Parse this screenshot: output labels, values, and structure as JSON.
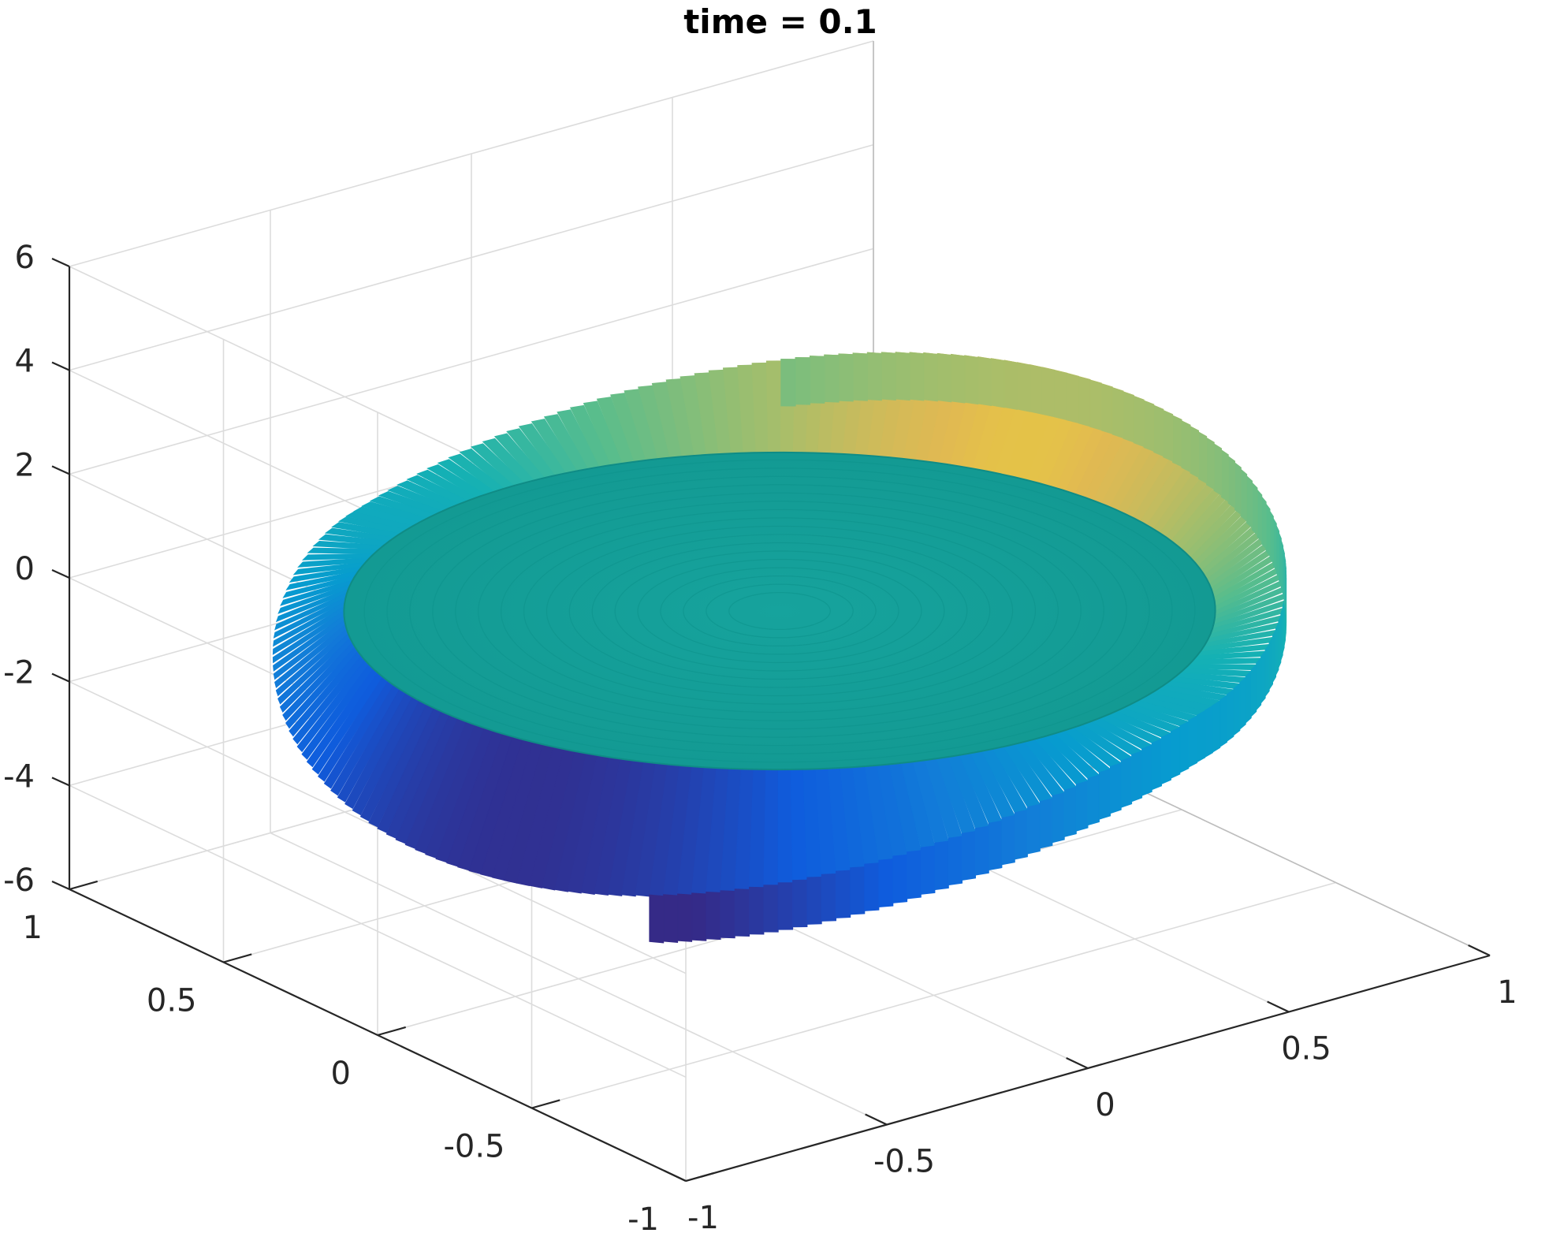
{
  "chart_data": {
    "type": "surface3d",
    "title": "time = 0.1",
    "xlabel": "",
    "ylabel": "",
    "zlabel": "",
    "xlim": [
      -1,
      1
    ],
    "ylim": [
      -1,
      1
    ],
    "zlim": [
      -6,
      6
    ],
    "x_ticks": [
      -1,
      -0.5,
      0,
      0.5,
      1
    ],
    "x_tick_labels": [
      "-1",
      "-0.5",
      "0",
      "0.5",
      "1"
    ],
    "y_ticks": [
      -1,
      -0.5,
      0,
      0.5,
      1
    ],
    "y_tick_labels": [
      "-1",
      "-0.5",
      "0",
      "0.5",
      "1"
    ],
    "z_ticks": [
      -6,
      -4,
      -2,
      0,
      2,
      4,
      6
    ],
    "z_tick_labels": [
      "-6",
      "-4",
      "-2",
      "0",
      "2",
      "4",
      "6"
    ],
    "grid": true,
    "colormap": "parula",
    "surface": {
      "domain": "unit disk",
      "interior_value": 0,
      "rim_min_value": -4,
      "rim_max_value": 3
    }
  }
}
